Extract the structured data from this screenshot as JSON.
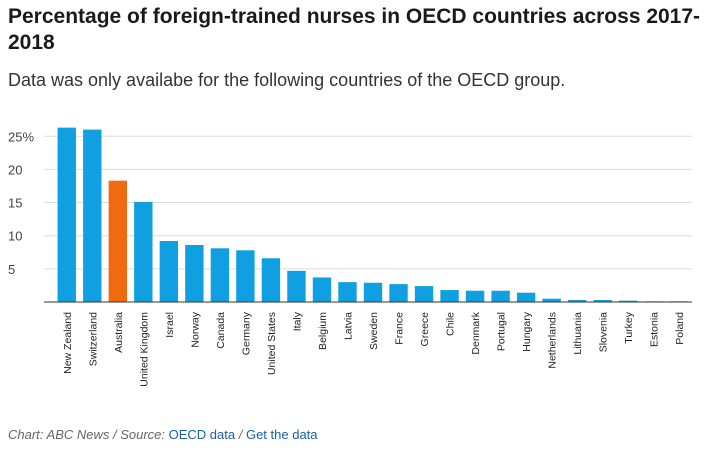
{
  "title": "Percentage of foreign-trained nurses in OECD countries across 2017-2018",
  "subtitle": "Data was only availabe for the following countries of the OECD group.",
  "footer": {
    "credit": "Chart: ABC News / Source: ",
    "source_link": "OECD data",
    "separator": " / ",
    "data_link": "Get the data"
  },
  "colors": {
    "bar": "#109fe0",
    "highlight": "#f06a0f",
    "grid": "#d9dde3",
    "axis": "#333333"
  },
  "chart_data": {
    "type": "bar",
    "highlight": "Australia",
    "ylim": [
      0,
      27
    ],
    "yticks": [
      5,
      10,
      15,
      20,
      25
    ],
    "ytick_labels": [
      "5",
      "10",
      "15",
      "20",
      "25%"
    ],
    "categories": [
      "New Zealand",
      "Switzerland",
      "Australia",
      "United Kingdom",
      "Israel",
      "Norway",
      "Canada",
      "Germany",
      "United States",
      "Italy",
      "Belgium",
      "Latvia",
      "Sweden",
      "France",
      "Greece",
      "Chile",
      "Denmark",
      "Portugal",
      "Hungary",
      "Netherlands",
      "Lithuania",
      "Slovenia",
      "Turkey",
      "Estonia",
      "Poland"
    ],
    "values": [
      26.3,
      26.0,
      18.3,
      15.1,
      9.2,
      8.6,
      8.1,
      7.8,
      6.6,
      4.7,
      3.7,
      3.0,
      2.9,
      2.7,
      2.4,
      1.8,
      1.7,
      1.7,
      1.4,
      0.5,
      0.3,
      0.3,
      0.2,
      0.1,
      0.1
    ]
  }
}
